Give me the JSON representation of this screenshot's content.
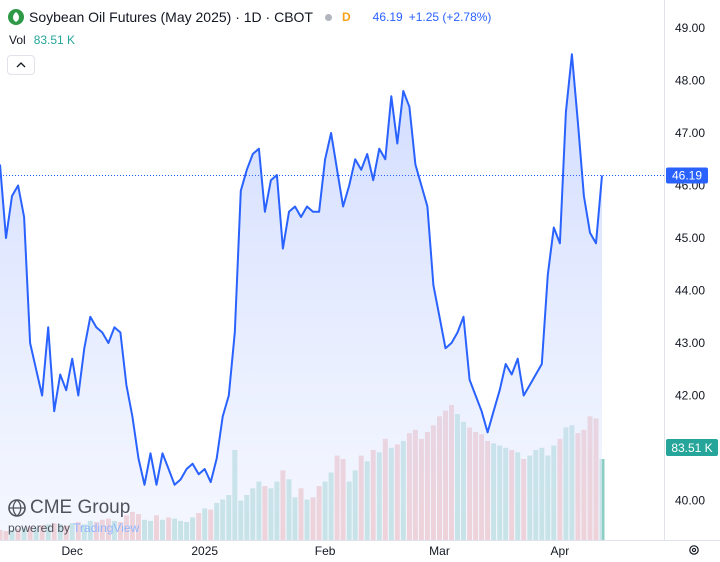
{
  "header": {
    "title": "Soybean Oil Futures (May 2025) · 1D · CBOT",
    "interval_badge": "D",
    "last_price": "46.19",
    "change": "+1.25 (+2.78%)",
    "icon": "soybean-leaf-icon"
  },
  "volume": {
    "label": "Vol",
    "value": "83.51 K"
  },
  "branding": {
    "company": "CME Group",
    "powered_by": "powered by",
    "provider": "TradingView"
  },
  "controls": {
    "collapse_icon": "chevron-up-icon",
    "settings_icon": "gear-icon"
  },
  "colors": {
    "line": "#2962ff",
    "area_top": "#cdd9ff",
    "volume_up": "#8ecdc4",
    "volume_down": "#eea3a3",
    "volume_label_bg": "#26a69a",
    "price_label_bg": "#2962ff"
  },
  "chart_data": {
    "type": "area",
    "title": "Soybean Oil Futures (May 2025) · 1D · CBOT",
    "ylim": [
      39.6,
      49.15
    ],
    "yticks": [
      "49.00",
      "48.00",
      "47.00",
      "46.00",
      "45.00",
      "44.00",
      "43.00",
      "42.00",
      "40.00"
    ],
    "xtick_labels": [
      {
        "label": "Dec",
        "index": 12
      },
      {
        "label": "2025",
        "index": 34
      },
      {
        "label": "Feb",
        "index": 54
      },
      {
        "label": "Mar",
        "index": 73
      },
      {
        "label": "Apr",
        "index": 93
      }
    ],
    "last_price_label": "46.19",
    "last_volume_label": "83.51 K",
    "grid": false,
    "series": [
      {
        "type": "line",
        "values": [
          46.4,
          45.0,
          45.8,
          46.0,
          45.4,
          43.0,
          42.5,
          42.0,
          43.3,
          41.7,
          42.4,
          42.1,
          42.7,
          42.0,
          42.9,
          43.5,
          43.3,
          43.2,
          43.0,
          43.3,
          43.2,
          42.2,
          41.6,
          40.8,
          40.3,
          40.9,
          40.3,
          40.9,
          40.6,
          40.3,
          40.4,
          40.6,
          40.7,
          40.5,
          40.6,
          40.35,
          40.8,
          41.6,
          42.0,
          43.2,
          45.9,
          46.3,
          46.6,
          46.7,
          45.5,
          46.1,
          46.2,
          44.8,
          45.5,
          45.6,
          45.4,
          45.6,
          45.5,
          45.5,
          46.5,
          47.0,
          46.3,
          45.6,
          46.0,
          46.5,
          46.3,
          46.6,
          46.1,
          46.7,
          46.5,
          47.7,
          46.8,
          47.8,
          47.5,
          46.4,
          46.0,
          45.6,
          44.1,
          43.5,
          42.9,
          43.0,
          43.2,
          43.5,
          42.3,
          42.0,
          41.7,
          41.3,
          41.7,
          42.1,
          42.6,
          42.4,
          42.7,
          42.0,
          42.2,
          42.4,
          42.6,
          44.3,
          45.2,
          44.9,
          47.4,
          48.5,
          47.2,
          45.8,
          45.1,
          44.9,
          46.19
        ]
      },
      {
        "type": "bar",
        "name": "Vol",
        "values": [
          9,
          8,
          9,
          10,
          11,
          12,
          11,
          13,
          14,
          15,
          14,
          13,
          15,
          16,
          14,
          17,
          16,
          18,
          19,
          17,
          16,
          22,
          25,
          23,
          18,
          17,
          22,
          18,
          20,
          19,
          17,
          16,
          20,
          24,
          28,
          27,
          33,
          36,
          40,
          80,
          35,
          40,
          46,
          52,
          48,
          46,
          52,
          62,
          54,
          38,
          46,
          36,
          38,
          48,
          52,
          60,
          75,
          72,
          52,
          62,
          75,
          70,
          80,
          78,
          90,
          82,
          85,
          88,
          95,
          98,
          90,
          96,
          102,
          110,
          115,
          120,
          112,
          105,
          100,
          96,
          94,
          88,
          86,
          84,
          82,
          80,
          78,
          72,
          75,
          80,
          82,
          75,
          84,
          90,
          100,
          102,
          95,
          98,
          110,
          108,
          72
        ],
        "up": [
          false,
          false,
          true,
          false,
          true,
          false,
          true,
          false,
          true,
          false,
          true,
          false,
          true,
          false,
          true,
          true,
          false,
          false,
          false,
          true,
          false,
          false,
          false,
          false,
          true,
          true,
          false,
          true,
          false,
          true,
          true,
          true,
          true,
          false,
          true,
          false,
          true,
          true,
          true,
          true,
          true,
          true,
          true,
          true,
          false,
          true,
          true,
          false,
          true,
          true,
          false,
          true,
          false,
          false,
          true,
          true,
          false,
          false,
          true,
          true,
          false,
          true,
          false,
          true,
          false,
          true,
          false,
          true,
          false,
          false,
          false,
          false,
          false,
          false,
          false,
          false,
          true,
          true,
          false,
          false,
          false,
          false,
          true,
          true,
          true,
          false,
          true,
          false,
          true,
          true,
          true,
          true,
          true,
          false,
          true,
          true,
          false,
          false,
          false,
          false,
          true
        ]
      }
    ]
  }
}
